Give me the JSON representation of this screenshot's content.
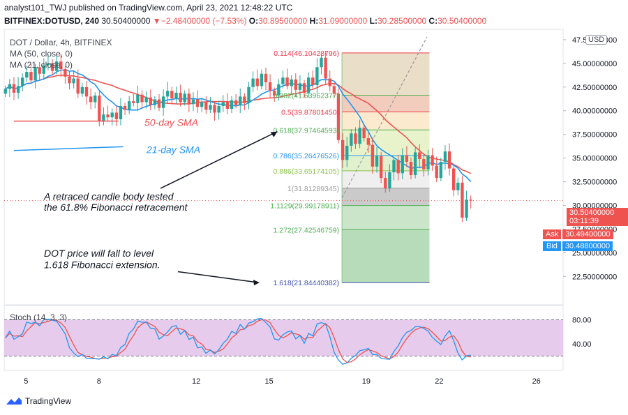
{
  "header": {
    "line1": "analyst101_TWJ published on TradingView.com, April 23, 2021 12:48:22 UTC",
    "symbol": "BITFINEX:DOTUSD, 240",
    "last": "30.50400000",
    "change": "−2.48400000 (−7.53%)",
    "o_label": "O:",
    "o": "30.89500000",
    "h_label": "H:",
    "h": "31.09000000",
    "l_label": "L:",
    "l": "30.28500000",
    "c_label": "C:",
    "c": "30.50400000"
  },
  "legend": {
    "title": "DOT / Dollar, 4h, BITFINEX",
    "ma50": "MA (50, close, 0)",
    "ma21": "MA (21, close, 0)",
    "stoch": "Stoch (14, 3, 3)"
  },
  "usd_label": "USD",
  "price_tags": {
    "last": "30.50400000",
    "countdown": "03:11:39",
    "ask_label": "Ask",
    "ask": "30.49400000",
    "bid_label": "Bid",
    "bid": "30.48800000"
  },
  "footer": {
    "brand": "TradingView"
  },
  "colors": {
    "up": "#26a69a",
    "down": "#ef5350",
    "ma50": "#ef5350",
    "ma21": "#2196f3",
    "stoch_k": "#2196f3",
    "stoch_d": "#ef5350",
    "stoch_bg": "#e1bee7"
  },
  "chart_data": {
    "type": "candlestick",
    "title": "DOT / Dollar, 4h, BITFINEX",
    "y_ticks": [
      "47.50000000",
      "45.00000000",
      "42.50000000",
      "40.00000000",
      "37.50000000",
      "35.00000000",
      "32.50000000",
      "30.00000000",
      "27.50000000",
      "25.00000000",
      "22.50000000"
    ],
    "y_tick_values": [
      47.5,
      45,
      42.5,
      40,
      37.5,
      35,
      32.5,
      30,
      27.5,
      25,
      22.5
    ],
    "ylim": [
      19.5,
      48.6
    ],
    "x_ticks": [
      "5",
      "8",
      "12",
      "15",
      "19",
      "22",
      "26"
    ],
    "x_tick_days": [
      5,
      8,
      12,
      15,
      19,
      22,
      26
    ],
    "xlim": [
      4.1,
      27.1
    ],
    "ohlc_close": [
      42.3,
      42.8,
      41.9,
      42.6,
      43.5,
      44.1,
      43.2,
      44.6,
      43.9,
      44.8,
      45.0,
      44.2,
      45.2,
      44.4,
      43.6,
      42.9,
      43.4,
      41.8,
      42.5,
      41.5,
      40.9,
      41.6,
      38.9,
      39.6,
      39.3,
      39.8,
      39.1,
      40.5,
      40.1,
      41.0,
      40.8,
      41.7,
      40.9,
      41.4,
      40.6,
      41.2,
      40.3,
      41.5,
      42.1,
      41.3,
      41.9,
      40.9,
      41.8,
      40.7,
      41.2,
      40.4,
      40.9,
      40.1,
      40.6,
      39.8,
      40.5,
      40.9,
      40.2,
      41.1,
      40.6,
      41.5,
      40.8,
      42.5,
      43.4,
      42.6,
      43.9,
      43.0,
      42.1,
      41.6,
      42.8,
      43.5,
      42.6,
      43.3,
      42.2,
      42.9,
      41.9,
      43.5,
      42.7,
      44.6,
      45.6,
      43.4,
      42.6,
      41.8,
      36.9,
      34.8,
      36.3,
      37.6,
      36.5,
      38.2,
      37.1,
      36.4,
      34.1,
      35.2,
      32.9,
      31.8,
      33.5,
      34.8,
      33.4,
      35.3,
      34.6,
      33.2,
      35.6,
      34.9,
      33.8,
      35.3,
      34.2,
      32.9,
      34.6,
      35.7,
      33.9,
      31.6,
      32.4,
      28.7,
      30.6,
      30.5
    ],
    "ma50": "plotted",
    "ma21": "plotted",
    "fibonacci": [
      {
        "ratio": "0.114",
        "price": "46.10428796",
        "y": 46.1
      },
      {
        "ratio": "0.382",
        "price": "41.63962377",
        "y": 41.64
      },
      {
        "ratio": "0.5",
        "price": "39.87801450",
        "y": 39.88
      },
      {
        "ratio": "0.618",
        "price": "37.97464593",
        "y": 37.97
      },
      {
        "ratio": "0.786",
        "price": "35.26476526",
        "y": 35.26
      },
      {
        "ratio": "0.886",
        "price": "33.65174105",
        "y": 33.65
      },
      {
        "ratio": "1",
        "price": "31.81289345",
        "y": 31.81
      },
      {
        "ratio": "1.1129",
        "price": "29.99178911",
        "y": 29.99
      },
      {
        "ratio": "1.272",
        "price": "27.42546759",
        "y": 27.43
      },
      {
        "ratio": "1.618",
        "price": "21.84440382",
        "y": 21.84
      }
    ],
    "annotations": {
      "sma50": "50-day SMA",
      "sma21": "21-day SMA",
      "note1_l1": "A retraced candle body tested",
      "note1_l2": "the 61.8% Fibonacci retracement",
      "note2_l1": "DOT price will fall to level",
      "note2_l2": "1.618 Fibonacci extension."
    },
    "stoch": {
      "y_ticks": [
        "80.00",
        "40.00"
      ],
      "y_tick_values": [
        80,
        40
      ],
      "ylim": [
        0,
        100
      ],
      "upper_band": 80,
      "lower_band": 20
    }
  }
}
